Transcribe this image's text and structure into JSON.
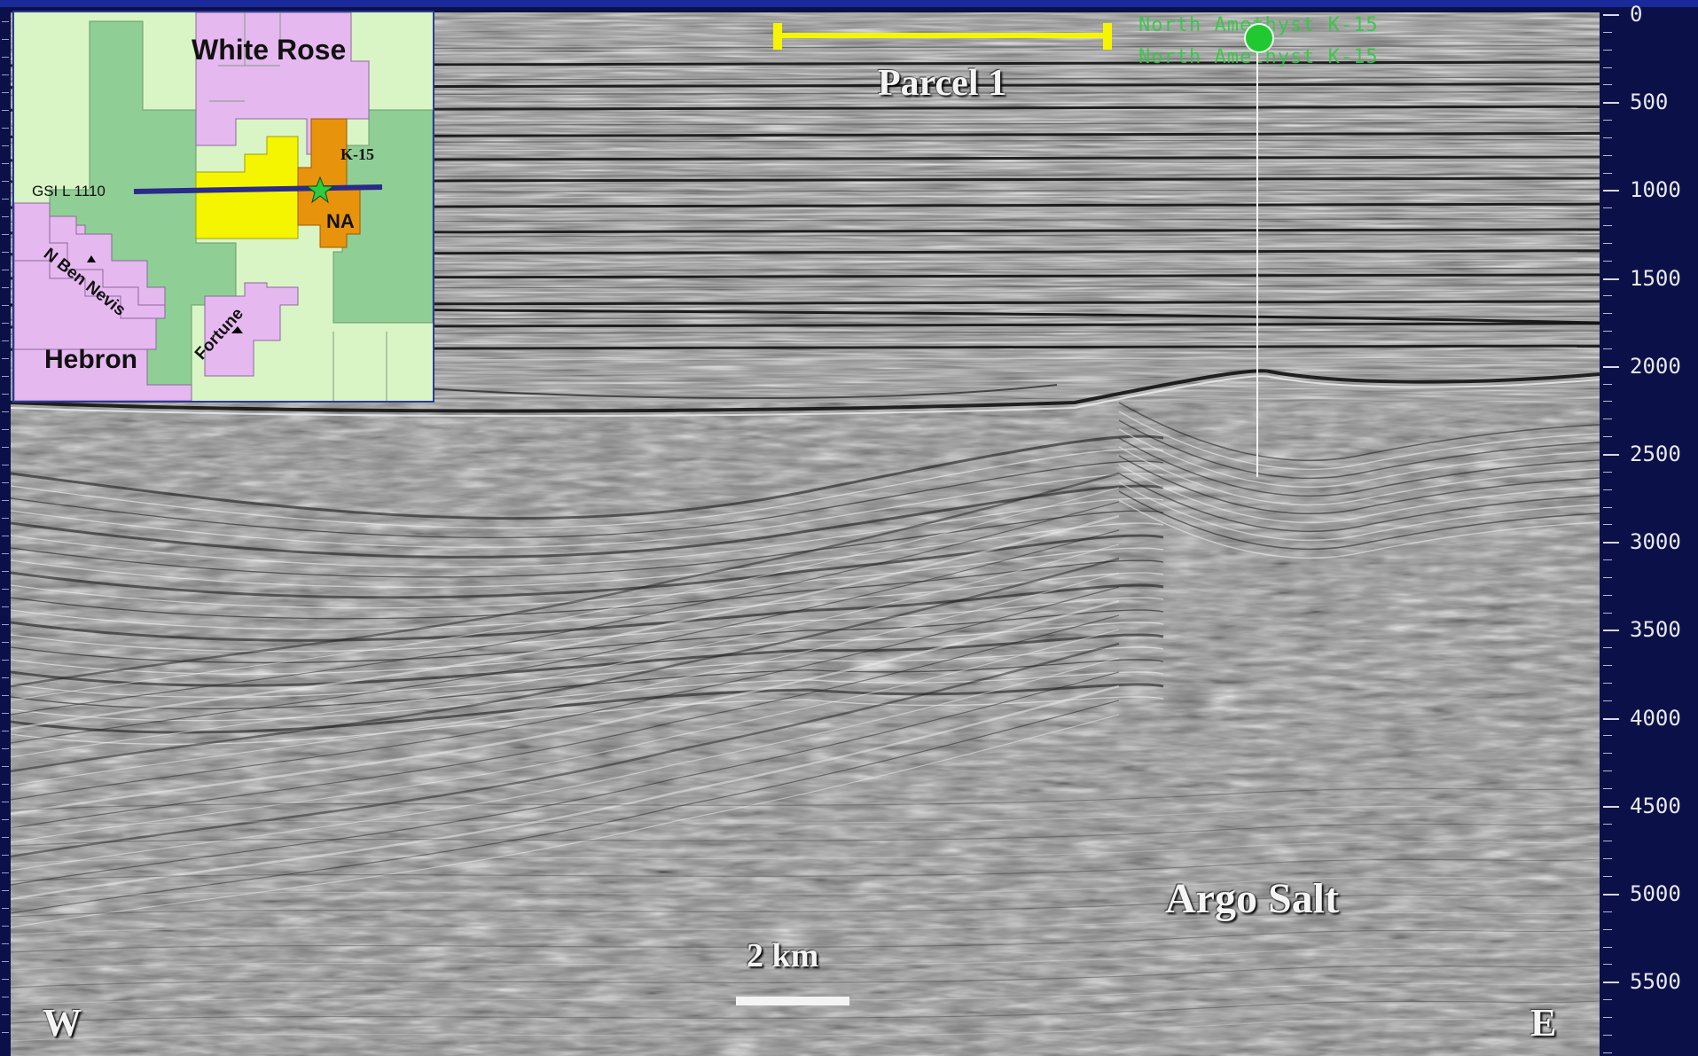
{
  "section": {
    "parcel_label": "Parcel 1",
    "salt_label": "Argo Salt",
    "scale_label": "2 km",
    "west_label": "W",
    "east_label": "E",
    "well_name_1": "North Amethyst K-15",
    "well_name_2": "North Amethyst K-15"
  },
  "axis": {
    "ticks": [
      "0",
      "500",
      "1000",
      "1500",
      "2000",
      "2500",
      "3000",
      "3500",
      "4000",
      "4500",
      "5000",
      "5500"
    ]
  },
  "inset_map": {
    "white_rose": "White Rose",
    "hebron": "Hebron",
    "k15": "K-15",
    "na": "NA",
    "line": "GSI L 1110",
    "n_ben_nevis": "N Ben Nevis",
    "fortune": "Fortune"
  },
  "colors": {
    "background": "#0b1148",
    "parcel_bar": "#f5f500",
    "well_marker": "#22c832",
    "seismic_line": "#2a2a8a"
  }
}
